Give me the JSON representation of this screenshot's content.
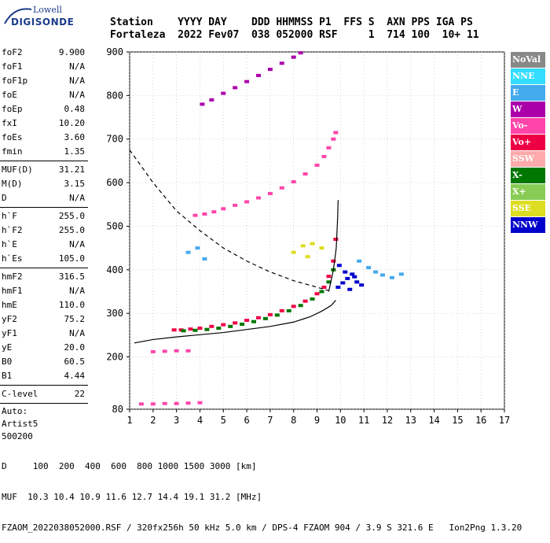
{
  "logo": {
    "line1": "Lowell",
    "line2": "DIGISONDE"
  },
  "header": {
    "keys": "Station    YYYY DAY    DDD HHMMSS P1  FFS S  AXN PPS IGA PS",
    "values": "Fortaleza  2022 Fev07  038 052000 RSF     1  714 100  10+ 11"
  },
  "params": {
    "group1": [
      {
        "label": "foF2",
        "value": "9.900"
      },
      {
        "label": "foF1",
        "value": "N/A"
      },
      {
        "label": "foF1p",
        "value": "N/A"
      },
      {
        "label": "foE",
        "value": "N/A"
      },
      {
        "label": "foEp",
        "value": "0.48"
      },
      {
        "label": "fxI",
        "value": "10.20"
      },
      {
        "label": "foEs",
        "value": "3.60"
      },
      {
        "label": "fmin",
        "value": "1.35"
      }
    ],
    "group2": [
      {
        "label": "MUF(D)",
        "value": "31.21"
      },
      {
        "label": "M(D)",
        "value": "3.15"
      },
      {
        "label": "D",
        "value": "N/A"
      }
    ],
    "group3": [
      {
        "label": "h`F",
        "value": "255.0"
      },
      {
        "label": "h`F2",
        "value": "255.0"
      },
      {
        "label": "h`E",
        "value": "N/A"
      },
      {
        "label": "h`Es",
        "value": "105.0"
      }
    ],
    "group4": [
      {
        "label": "hmF2",
        "value": "316.5"
      },
      {
        "label": "hmF1",
        "value": "N/A"
      },
      {
        "label": "hmE",
        "value": "110.0"
      },
      {
        "label": "yF2",
        "value": "75.2"
      },
      {
        "label": "yF1",
        "value": "N/A"
      },
      {
        "label": "yE",
        "value": "20.0"
      },
      {
        "label": "B0",
        "value": "60.5"
      },
      {
        "label": "B1",
        "value": "4.44"
      }
    ],
    "group5": [
      {
        "label": "C-level",
        "value": "22"
      }
    ],
    "auto": [
      "Auto:",
      "Artist5",
      "500200"
    ]
  },
  "legend": [
    {
      "label": "NoVal",
      "color": "#888888"
    },
    {
      "label": "NNE",
      "color": "#33ddff"
    },
    {
      "label": "E",
      "color": "#44aaee"
    },
    {
      "label": "W",
      "color": "#aa00aa"
    },
    {
      "label": "Vo-",
      "color": "#ff44aa"
    },
    {
      "label": "Vo+",
      "color": "#ee0044"
    },
    {
      "label": "SSW",
      "color": "#ffaaaa"
    },
    {
      "label": "X-",
      "color": "#007700"
    },
    {
      "label": "X+",
      "color": "#88cc55"
    },
    {
      "label": "SSE",
      "color": "#dddd22"
    },
    {
      "label": "NNW",
      "color": "#0000cc"
    }
  ],
  "footer": {
    "line1": "D     100  200  400  600  800 1000 1500 3000 [km]",
    "line2": "MUF  10.3 10.4 10.9 11.6 12.7 14.4 19.1 31.2 [MHz]",
    "line3": "FZAOM_2022038052000.RSF / 320fx256h 50 kHz 5.0 km / DPS-4 FZAOM 904 / 3.9 S 321.6 E   Ion2Png 1.3.20"
  },
  "chart_data": {
    "type": "scatter",
    "title": "",
    "xlabel": "",
    "ylabel": "",
    "xlim": [
      1,
      17
    ],
    "ylim": [
      80,
      900
    ],
    "x_ticks": [
      1,
      2,
      3,
      4,
      5,
      6,
      7,
      8,
      9,
      10,
      11,
      12,
      13,
      14,
      15,
      16,
      17
    ],
    "y_ticks": [
      80,
      200,
      300,
      400,
      500,
      600,
      700,
      800,
      900
    ],
    "grid": "dotted",
    "legend_position": "right",
    "series": [
      {
        "name": "Vo+",
        "color": "#ee0044",
        "x": [
          2.9,
          3.2,
          3.6,
          4.0,
          4.5,
          5.0,
          5.5,
          6.0,
          6.5,
          7.0,
          7.5,
          8.0,
          8.5,
          9.0,
          9.3,
          9.5,
          9.7,
          9.8
        ],
        "y": [
          262,
          262,
          264,
          266,
          270,
          274,
          278,
          284,
          290,
          297,
          306,
          316,
          328,
          345,
          360,
          385,
          420,
          470
        ]
      },
      {
        "name": "Vo-",
        "color": "#ff44aa",
        "x": [
          3.8,
          4.2,
          4.6,
          5.0,
          5.5,
          6.0,
          6.5,
          7.0,
          7.5,
          8.0,
          8.5,
          9.0,
          9.3,
          9.5,
          9.7,
          9.8
        ],
        "y": [
          525,
          528,
          533,
          540,
          548,
          556,
          565,
          575,
          588,
          602,
          620,
          640,
          660,
          680,
          700,
          715
        ]
      },
      {
        "name": "W",
        "color": "#aa00aa",
        "x": [
          4.1,
          4.5,
          5.0,
          5.5,
          6.0,
          6.5,
          7.0,
          7.5,
          8.0,
          8.3
        ],
        "y": [
          780,
          790,
          805,
          818,
          832,
          846,
          860,
          874,
          888,
          898
        ]
      },
      {
        "name": "X-",
        "color": "#007700",
        "x": [
          3.3,
          3.8,
          4.3,
          4.8,
          5.3,
          5.8,
          6.3,
          6.8,
          7.3,
          7.8,
          8.3,
          8.8,
          9.2,
          9.5,
          9.7
        ],
        "y": [
          260,
          261,
          263,
          266,
          270,
          275,
          281,
          288,
          296,
          306,
          318,
          333,
          350,
          372,
          400
        ]
      },
      {
        "name": "NNW",
        "color": "#0000cc",
        "x": [
          9.9,
          10.1,
          10.3,
          10.5,
          10.7,
          10.9,
          10.2,
          10.6,
          9.95,
          10.4
        ],
        "y": [
          360,
          370,
          380,
          390,
          372,
          365,
          395,
          384,
          410,
          355
        ]
      },
      {
        "name": "E",
        "color": "#44aaee",
        "x": [
          3.5,
          3.9,
          4.2,
          10.8,
          11.2,
          11.5,
          11.8,
          12.2,
          12.6
        ],
        "y": [
          440,
          450,
          425,
          420,
          405,
          395,
          388,
          382,
          390
        ]
      },
      {
        "name": "Vo- Es",
        "color": "#ff44aa",
        "x": [
          1.5,
          2.0,
          2.5,
          3.0,
          3.5,
          4.0,
          2.0,
          2.5,
          3.0,
          3.5
        ],
        "y": [
          92,
          92,
          93,
          93,
          94,
          95,
          212,
          213,
          214,
          214
        ]
      },
      {
        "name": "SSE",
        "color": "#dddd22",
        "x": [
          8.0,
          8.4,
          8.8,
          9.2,
          8.6
        ],
        "y": [
          440,
          455,
          460,
          450,
          430
        ]
      }
    ],
    "curves": {
      "solid": {
        "x": [
          1.2,
          2,
          3,
          4,
          5,
          6,
          7,
          8,
          8.7,
          9.2,
          9.6,
          9.8
        ],
        "y": [
          232,
          240,
          246,
          251,
          256,
          263,
          270,
          280,
          292,
          305,
          318,
          330
        ]
      },
      "solid_right": {
        "x": [
          9.5,
          9.7,
          9.82,
          9.88,
          9.9
        ],
        "y": [
          350,
          400,
          450,
          520,
          560
        ]
      },
      "dashed": {
        "x": [
          1.0,
          2.0,
          3.0,
          4.0,
          5.0,
          6.0,
          7.0,
          8.0,
          9.0,
          9.5
        ],
        "y": [
          675,
          600,
          535,
          490,
          450,
          420,
          395,
          375,
          360,
          352
        ]
      }
    }
  }
}
